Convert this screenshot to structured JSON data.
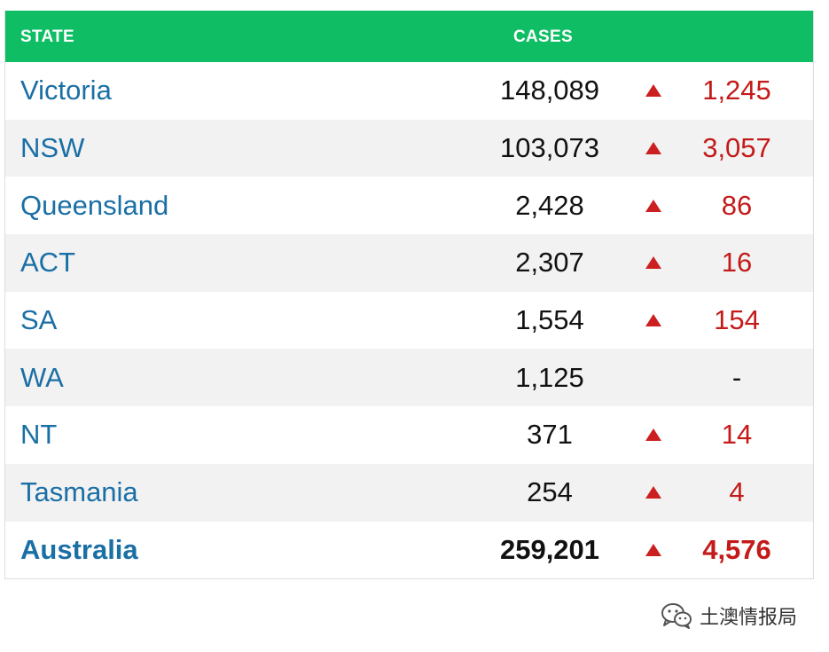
{
  "table": {
    "header": {
      "state": "STATE",
      "cases": "CASES"
    },
    "rows": [
      {
        "state": "Victoria",
        "cases": "148,089",
        "arrow": "up-triangle-icon",
        "change": "1,245"
      },
      {
        "state": "NSW",
        "cases": "103,073",
        "arrow": "up-triangle-icon",
        "change": "3,057"
      },
      {
        "state": "Queensland",
        "cases": "2,428",
        "arrow": "up-triangle-icon",
        "change": "86"
      },
      {
        "state": "ACT",
        "cases": "2,307",
        "arrow": "up-triangle-icon",
        "change": "16"
      },
      {
        "state": "SA",
        "cases": "1,554",
        "arrow": "up-triangle-icon",
        "change": "154"
      },
      {
        "state": "WA",
        "cases": "1,125",
        "arrow": null,
        "change": "-"
      },
      {
        "state": "NT",
        "cases": "371",
        "arrow": "up-triangle-icon",
        "change": "14"
      },
      {
        "state": "Tasmania",
        "cases": "254",
        "arrow": "up-triangle-icon",
        "change": "4"
      }
    ],
    "total": {
      "state": "Australia",
      "cases": "259,201",
      "arrow": "up-triangle-icon",
      "change": "4,576"
    }
  },
  "watermark": {
    "icon": "wechat-icon",
    "text": "土澳情报局"
  },
  "colors": {
    "header_bg": "#0ebd64",
    "state_text": "#1a6fa5",
    "increase": "#c41a1a",
    "stripe": "#f2f2f2"
  }
}
